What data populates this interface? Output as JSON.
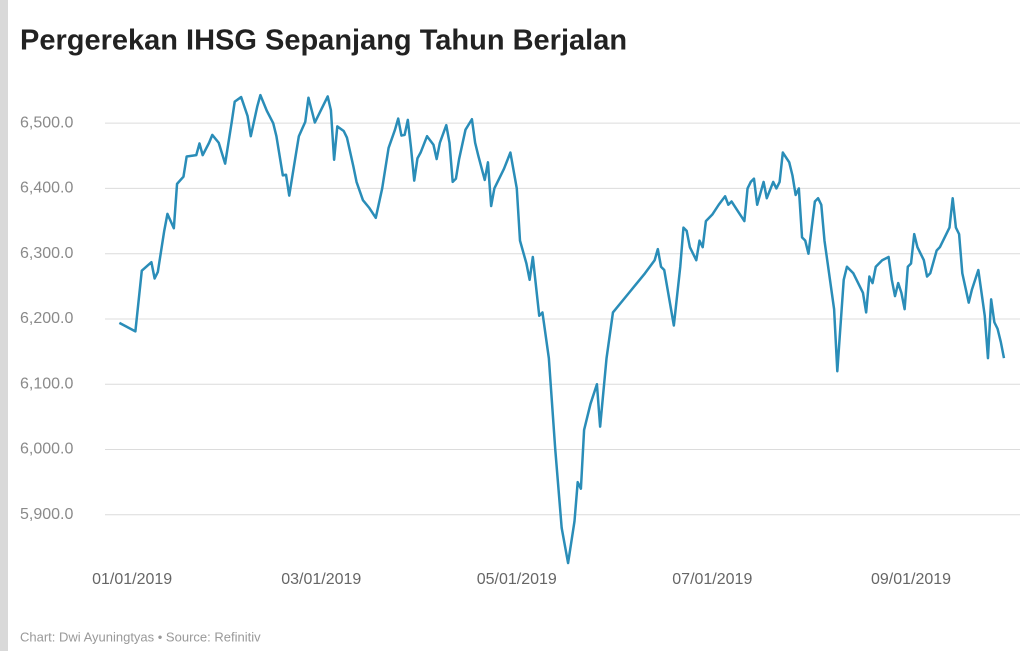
{
  "chart_data": {
    "type": "line",
    "title": "Pergerekan IHSG Sepanjang Tahun Berjalan",
    "footer": "Chart: Dwi Ayuningtyas • Source: Refinitiv",
    "x": [
      "12/28/2018",
      "01/02/2019",
      "01/04/2019",
      "01/07/2019",
      "01/08/2019",
      "01/09/2019",
      "01/11/2019",
      "01/12/2019",
      "01/14/2019",
      "01/15/2019",
      "01/17/2019",
      "01/18/2019",
      "01/21/2019",
      "01/22/2019",
      "01/23/2019",
      "01/25/2019",
      "01/26/2019",
      "01/28/2019",
      "01/30/2019",
      "02/01/2019",
      "02/02/2019",
      "02/04/2019",
      "02/06/2019",
      "02/07/2019",
      "02/09/2019",
      "02/10/2019",
      "02/12/2019",
      "02/14/2019",
      "02/15/2019",
      "02/17/2019",
      "02/18/2019",
      "02/19/2019",
      "02/21/2019",
      "02/22/2019",
      "02/24/2019",
      "02/25/2019",
      "02/27/2019",
      "03/01/2019",
      "03/03/2019",
      "03/04/2019",
      "03/05/2019",
      "03/06/2019",
      "03/08/2019",
      "03/09/2019",
      "03/11/2019",
      "03/12/2019",
      "03/14/2019",
      "03/16/2019",
      "03/18/2019",
      "03/20/2019",
      "03/22/2019",
      "03/24/2019",
      "03/25/2019",
      "03/26/2019",
      "03/27/2019",
      "03/28/2019",
      "03/29/2019",
      "03/30/2019",
      "03/31/2019",
      "04/01/2019",
      "04/03/2019",
      "04/05/2019",
      "04/06/2019",
      "04/07/2019",
      "04/09/2019",
      "04/10/2019",
      "04/11/2019",
      "04/12/2019",
      "04/13/2019",
      "04/15/2019",
      "04/17/2019",
      "04/18/2019",
      "04/19/2019",
      "04/21/2019",
      "04/22/2019",
      "04/23/2019",
      "04/24/2019",
      "04/27/2019",
      "04/29/2019",
      "05/01/2019",
      "05/02/2019",
      "05/04/2019",
      "05/05/2019",
      "05/06/2019",
      "05/08/2019",
      "05/09/2019",
      "05/11/2019",
      "05/13/2019",
      "05/15/2019",
      "05/17/2019",
      "05/19/2019",
      "05/20/2019",
      "05/21/2019",
      "05/22/2019",
      "05/24/2019",
      "05/26/2019",
      "05/27/2019",
      "05/29/2019",
      "05/31/2019",
      "06/05/2019",
      "06/10/2019",
      "06/13/2019",
      "06/14/2019",
      "06/15/2019",
      "06/16/2019",
      "06/19/2019",
      "06/21/2019",
      "06/22/2019",
      "06/23/2019",
      "06/24/2019",
      "06/26/2019",
      "06/27/2019",
      "06/28/2019",
      "06/29/2019",
      "07/01/2019",
      "07/03/2019",
      "07/05/2019",
      "07/06/2019",
      "07/07/2019",
      "07/09/2019",
      "07/11/2019",
      "07/12/2019",
      "07/13/2019",
      "07/14/2019",
      "07/15/2019",
      "07/17/2019",
      "07/18/2019",
      "07/20/2019",
      "07/21/2019",
      "07/22/2019",
      "07/23/2019",
      "07/25/2019",
      "07/26/2019",
      "07/27/2019",
      "07/28/2019",
      "07/29/2019",
      "07/30/2019",
      "07/31/2019",
      "08/02/2019",
      "08/03/2019",
      "08/04/2019",
      "08/05/2019",
      "08/08/2019",
      "08/09/2019",
      "08/11/2019",
      "08/12/2019",
      "08/14/2019",
      "08/15/2019",
      "08/17/2019",
      "08/18/2019",
      "08/19/2019",
      "08/20/2019",
      "08/21/2019",
      "08/23/2019",
      "08/25/2019",
      "08/26/2019",
      "08/27/2019",
      "08/28/2019",
      "08/29/2019",
      "08/30/2019",
      "08/31/2019",
      "09/01/2019",
      "09/02/2019",
      "09/03/2019",
      "09/04/2019",
      "09/05/2019",
      "09/06/2019",
      "09/07/2019",
      "09/09/2019",
      "09/10/2019",
      "09/13/2019",
      "09/14/2019",
      "09/15/2019",
      "09/16/2019",
      "09/17/2019",
      "09/19/2019",
      "09/20/2019",
      "09/22/2019",
      "09/23/2019",
      "09/24/2019",
      "09/25/2019",
      "09/26/2019",
      "09/27/2019",
      "09/28/2019",
      "09/29/2019",
      "09/30/2019"
    ],
    "series": [
      {
        "color": "#2a8db8",
        "values": [
          6194,
          6181,
          6274,
          6287,
          6262,
          6272,
          6335,
          6361,
          6339,
          6407,
          6418,
          6449,
          6451,
          6469,
          6451,
          6470,
          6482,
          6470,
          6438,
          6500,
          6533,
          6540,
          6511,
          6480,
          6525,
          6543,
          6519,
          6500,
          6480,
          6420,
          6421,
          6389,
          6450,
          6480,
          6502,
          6539,
          6501,
          6521,
          6541,
          6520,
          6444,
          6495,
          6488,
          6478,
          6434,
          6410,
          6382,
          6370,
          6355,
          6400,
          6462,
          6490,
          6507,
          6481,
          6482,
          6505,
          6462,
          6412,
          6446,
          6455,
          6480,
          6467,
          6445,
          6470,
          6497,
          6470,
          6410,
          6415,
          6445,
          6490,
          6506,
          6470,
          6450,
          6413,
          6440,
          6373,
          6400,
          6430,
          6455,
          6400,
          6320,
          6285,
          6260,
          6295,
          6205,
          6210,
          6140,
          6000,
          5880,
          5826,
          5890,
          5950,
          5940,
          6030,
          6070,
          6100,
          6035,
          6140,
          6210,
          6240,
          6270,
          6290,
          6307,
          6280,
          6275,
          6190,
          6280,
          6340,
          6335,
          6310,
          6290,
          6320,
          6310,
          6350,
          6360,
          6375,
          6388,
          6375,
          6380,
          6365,
          6350,
          6400,
          6410,
          6415,
          6375,
          6410,
          6385,
          6410,
          6400,
          6410,
          6455,
          6440,
          6420,
          6390,
          6400,
          6325,
          6320,
          6300,
          6380,
          6385,
          6375,
          6320,
          6215,
          6120,
          6260,
          6280,
          6270,
          6260,
          6240,
          6210,
          6265,
          6255,
          6280,
          6290,
          6295,
          6260,
          6235,
          6255,
          6240,
          6215,
          6280,
          6285,
          6330,
          6310,
          6300,
          6290,
          6265,
          6270,
          6305,
          6310,
          6340,
          6385,
          6340,
          6330,
          6270,
          6225,
          6245,
          6275,
          6240,
          6205,
          6140,
          6230,
          6195,
          6185,
          6165,
          6140
        ]
      }
    ],
    "xlim": [
      "11/27/2018",
      "10/05/2019"
    ],
    "xticks": [
      "01/01/2019",
      "03/01/2019",
      "05/01/2019",
      "07/01/2019",
      "09/01/2019"
    ],
    "ylim": [
      5820,
      6560
    ],
    "yticks": [
      {
        "value": 5900,
        "label": "5,900.0"
      },
      {
        "value": 6000,
        "label": "6,000.0"
      },
      {
        "value": 6100,
        "label": "6,100.0"
      },
      {
        "value": 6200,
        "label": "6,200.0"
      },
      {
        "value": 6300,
        "label": "6,300.0"
      },
      {
        "value": 6400,
        "label": "6,400.0"
      },
      {
        "value": 6500,
        "label": "6,500.0"
      }
    ],
    "grid": true
  }
}
